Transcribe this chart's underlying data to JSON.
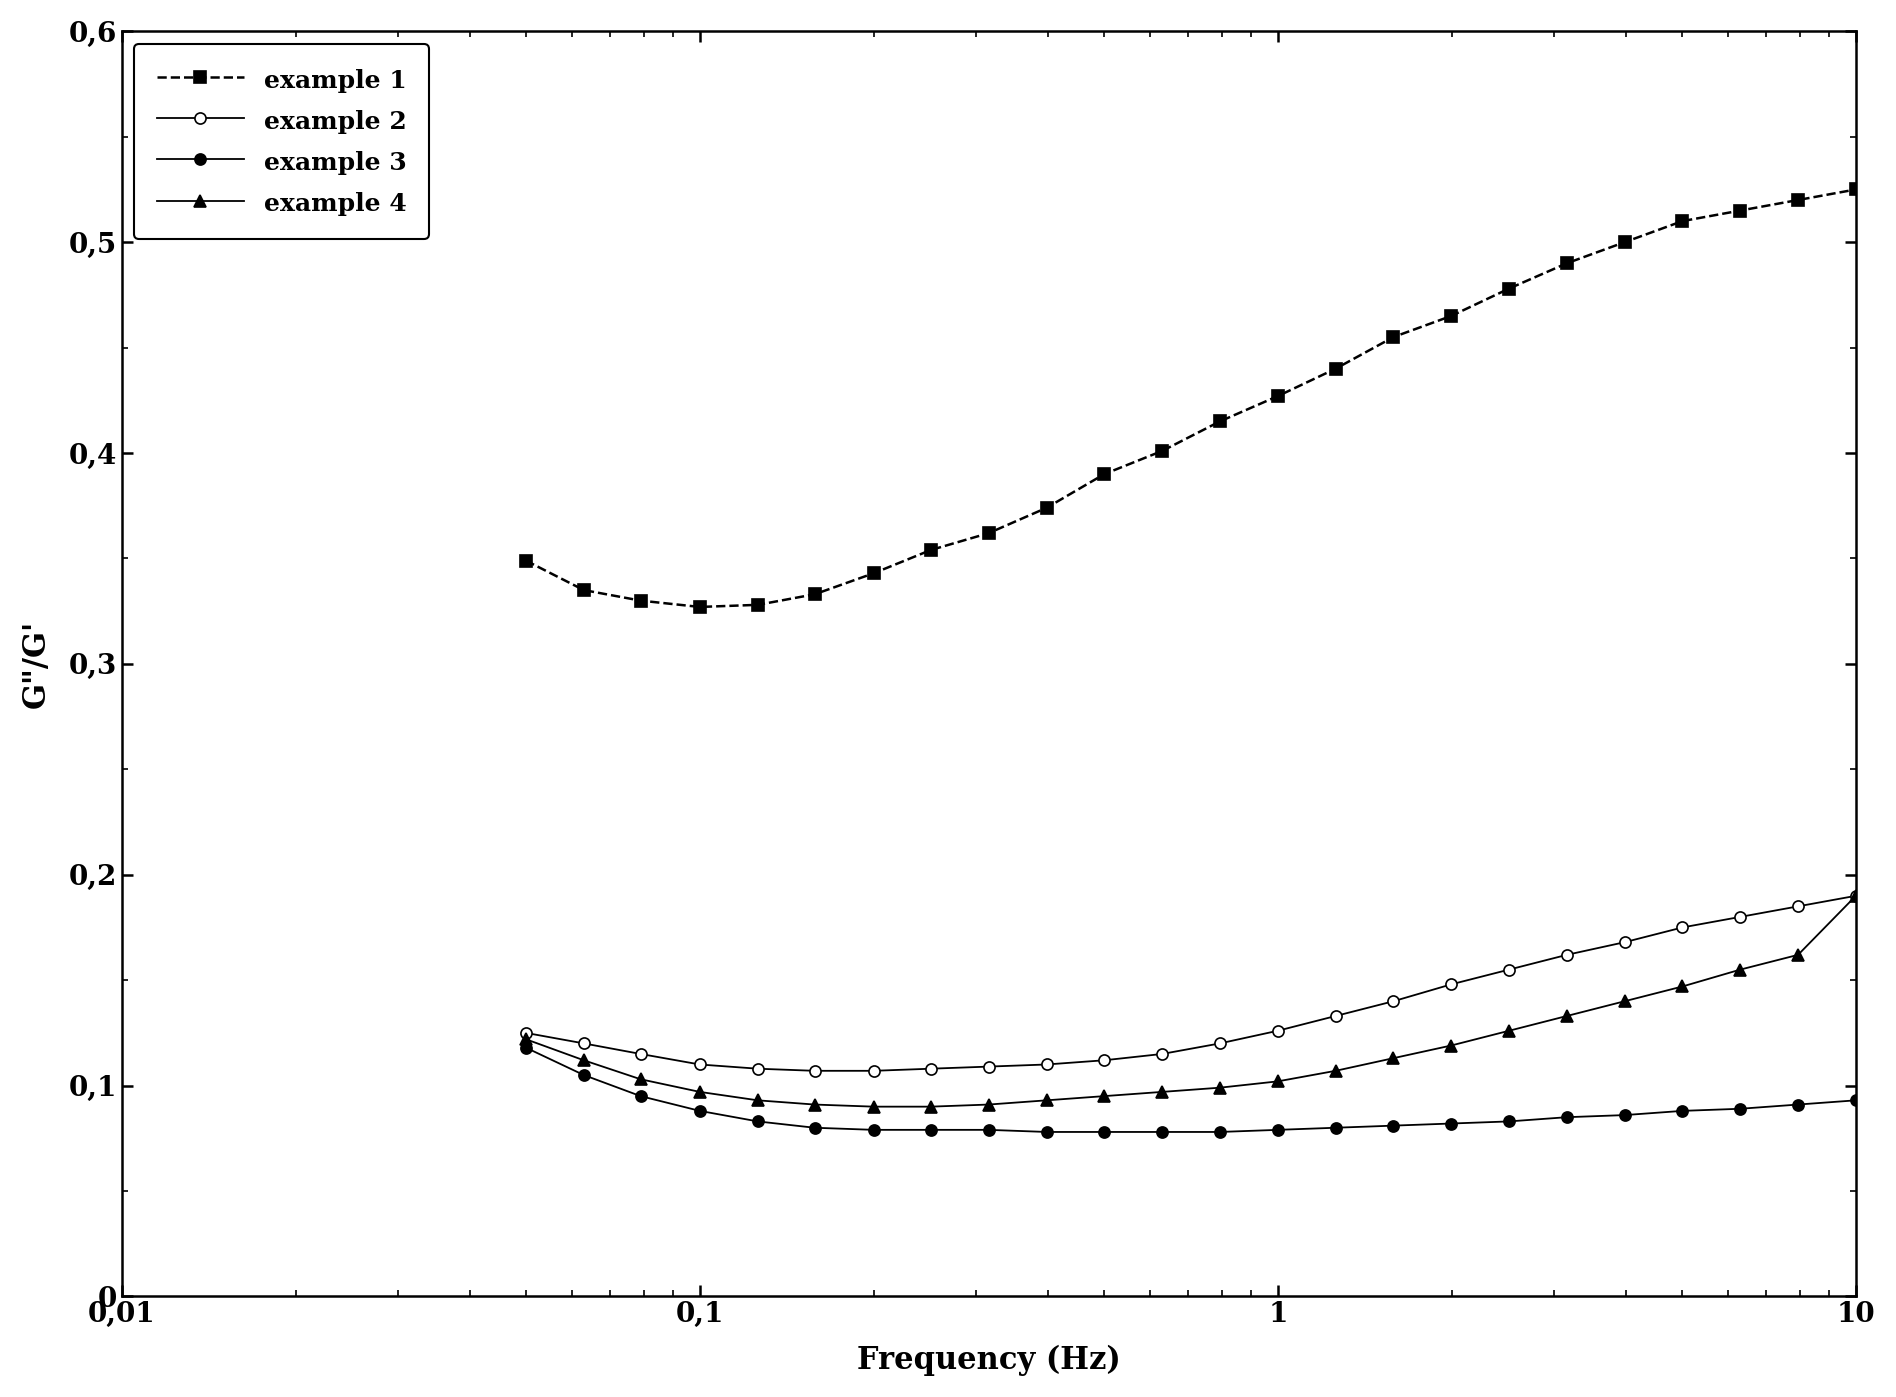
{
  "title": "",
  "xlabel": "Frequency (Hz)",
  "ylabel": "G\"/G'",
  "ylim": [
    0,
    0.6
  ],
  "ytick_labels": [
    "0",
    "0,1",
    "0,2",
    "0,3",
    "0,4",
    "0,5",
    "0,6"
  ],
  "xtick_labels": [
    "0,01",
    "0,1",
    "1",
    "10"
  ],
  "background_color": "#ffffff",
  "series": [
    {
      "label": "example 1",
      "linestyle": "dashed",
      "marker": "s",
      "marker_fill": "black",
      "color": "black",
      "x": [
        0.05,
        0.063,
        0.079,
        0.1,
        0.126,
        0.158,
        0.2,
        0.251,
        0.316,
        0.398,
        0.501,
        0.631,
        0.794,
        1.0,
        1.259,
        1.585,
        1.995,
        2.512,
        3.162,
        3.981,
        5.012,
        6.31,
        7.943,
        10.0
      ],
      "y": [
        0.349,
        0.335,
        0.33,
        0.327,
        0.328,
        0.333,
        0.343,
        0.354,
        0.362,
        0.374,
        0.39,
        0.401,
        0.415,
        0.427,
        0.44,
        0.455,
        0.465,
        0.478,
        0.49,
        0.5,
        0.51,
        0.515,
        0.52,
        0.525
      ]
    },
    {
      "label": "example 2",
      "linestyle": "solid",
      "marker": "o",
      "marker_fill": "white",
      "color": "black",
      "x": [
        0.05,
        0.063,
        0.079,
        0.1,
        0.126,
        0.158,
        0.2,
        0.251,
        0.316,
        0.398,
        0.501,
        0.631,
        0.794,
        1.0,
        1.259,
        1.585,
        1.995,
        2.512,
        3.162,
        3.981,
        5.012,
        6.31,
        7.943,
        10.0
      ],
      "y": [
        0.125,
        0.12,
        0.115,
        0.11,
        0.108,
        0.107,
        0.107,
        0.108,
        0.109,
        0.11,
        0.112,
        0.115,
        0.12,
        0.126,
        0.133,
        0.14,
        0.148,
        0.155,
        0.162,
        0.168,
        0.175,
        0.18,
        0.185,
        0.19
      ]
    },
    {
      "label": "example 3",
      "linestyle": "solid",
      "marker": "o",
      "marker_fill": "black",
      "color": "black",
      "x": [
        0.05,
        0.063,
        0.079,
        0.1,
        0.126,
        0.158,
        0.2,
        0.251,
        0.316,
        0.398,
        0.501,
        0.631,
        0.794,
        1.0,
        1.259,
        1.585,
        1.995,
        2.512,
        3.162,
        3.981,
        5.012,
        6.31,
        7.943,
        10.0
      ],
      "y": [
        0.118,
        0.105,
        0.095,
        0.088,
        0.083,
        0.08,
        0.079,
        0.079,
        0.079,
        0.078,
        0.078,
        0.078,
        0.078,
        0.079,
        0.08,
        0.081,
        0.082,
        0.083,
        0.085,
        0.086,
        0.088,
        0.089,
        0.091,
        0.093
      ]
    },
    {
      "label": "example 4",
      "linestyle": "solid",
      "marker": "^",
      "marker_fill": "black",
      "color": "black",
      "x": [
        0.05,
        0.063,
        0.079,
        0.1,
        0.126,
        0.158,
        0.2,
        0.251,
        0.316,
        0.398,
        0.501,
        0.631,
        0.794,
        1.0,
        1.259,
        1.585,
        1.995,
        2.512,
        3.162,
        3.981,
        5.012,
        6.31,
        7.943,
        10.0
      ],
      "y": [
        0.122,
        0.112,
        0.103,
        0.097,
        0.093,
        0.091,
        0.09,
        0.09,
        0.091,
        0.093,
        0.095,
        0.097,
        0.099,
        0.102,
        0.107,
        0.113,
        0.119,
        0.126,
        0.133,
        0.14,
        0.147,
        0.155,
        0.162,
        0.19
      ]
    }
  ]
}
